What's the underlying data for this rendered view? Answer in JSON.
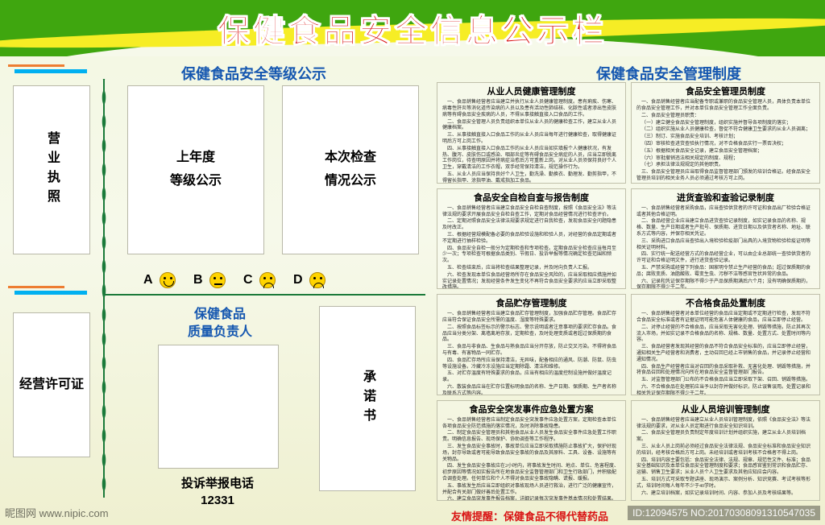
{
  "title": "保健食品安全信息公示栏",
  "section_left": "保健食品安全等级公示",
  "section_right": "保健食品安全管理制度",
  "slots": {
    "license": "营业执照",
    "permit": "经营许可证",
    "last_year_l1": "上年度",
    "last_year_l2": "等级公示",
    "this_check_l1": "本次检查",
    "this_check_l2": "情况公示",
    "pledge": "承诺书"
  },
  "ratings": {
    "a": "A",
    "b": "B",
    "c": "C",
    "d": "D"
  },
  "responsible": {
    "l1": "保健食品",
    "l2": "质量负责人"
  },
  "hotline": {
    "l1": "投诉举报电话",
    "l2": "12331"
  },
  "policies": [
    {
      "title": "从业人员健康管理制度",
      "body": [
        "一、食品销售经营者应当建立并执行从业人员健康管理制度。患有痢疾、伤寒、病毒性肝炎等消化道传染病的人员以及患有活动性肺结核、化脓性或者渗出性皮肤病等有碍食品安全疾病的人员，不得从事接触直接入口食品的工作。",
        "二、食品安全管理人员负责组织本单位从业人员的健康检查工作，建立从业人员健康档案。",
        "三、从事接触直接入口食品工作的从业人员应当每年进行健康检查，取得健康证明后方可上岗工作。",
        "四、从事接触直接入口食品工作的从业人员应当如实填报个人健康状况，有发热、腹泻、皮肤伤口或感染、咽部炎症等有碍食品安全病症的人员，应当立即脱离工作岗位，待查明原因并将病症治愈后方可重新上岗。对从业人员须保持良好个人卫生，穿戴清洁的工作衣帽，双手经常保持清洁，规范操作行为。",
        "五、从业人员应当保持良好个人卫生，勤洗澡、勤换衣、勤理发、勤剪指甲，不得留长指甲、涂指甲油、戴戒指加工食品。",
        "六、从业人员数量超过规模、健康检查项目与监督频次以及对发现疑似健康问题的随访措施应当依照国家规定执行。不得聘用未取得健康合格证明的人员。"
      ]
    },
    {
      "title": "食品安全管理员制度",
      "body": [
        "一、食品销售经营者应当配备专职或兼职的食品安全管理人员，具体负责本单位的食品安全管理工作，并对本单位食品安全管理工作全面负责。",
        "二、食品安全管理员职责：",
        "（一）建立健全食品安全管理制度，组织实施并督导各项制度的落实；",
        "（二）组织实施从业人员健康检查，督促不符合健康卫生要求的从业人员调离；",
        "（三）制订、实施食品安全培训、考核计划；",
        "（四）审核检查进货查验执行情况，对不合格食品实行一票否决权；",
        "（五）根据相关食品安全记录，建立食品安全管理档案；",
        "（六）审批撤销违法相关规定的制度、规程；",
        "（七）承担法律法规规定的其他职责。",
        "三、食品安全管理员应当取得食品监督管理部门颁发的培训合格证。经食品安全管理员培训的相关业务人员必须通过考核方可上岗。"
      ]
    },
    {
      "title": "食品安全自检自查与报告制度",
      "body": [
        "一、食品销售经营者应当建立食品安全自检自查制度，按照《食品安全法》等法律法规的要求开展食品安全自检自查工作，定期对食品经营情况进行检查评价。",
        "二、定期对照食品安全法律法规要求规定进行自我检查，发现食品安全问题隐患及时改正。",
        "三、根据经营规模配备必要的食品检验设施和检验人员，对经营的食品定期或者不定期进行抽样检验。",
        "四、食品安全自检一般分为定期检查和专项检查。定期食品安全检查应当每月至少一次；专项检查可根据食品类别、节假日、投诉举报等情况确定检查范围和频次。",
        "五、检查结束后，应当将检查结果整理记录，并及时向负责人汇报。",
        "六、检查发现本单位食品经营场所存在食品安全风险的，应当采取相应措施并如实记录处置情况；发现经营条件发生变化不再符合食品安全要求的应当立即采取整改措施。",
        "七、发现有发生食品安全事故潜在风险的，应当立即停止经营并向食品安全监督管理部门报告。建立食品安全事故报告制度和应急预案。"
      ]
    },
    {
      "title": "进货查验和查验记录制度",
      "body": [
        "一、食品销售经营者采购食品，应当查验供货者的许可证和食品出厂检验合格证或者其他合格证明。",
        "二、食品经营企业应当建立食品进货查验记录制度，如实记录食品的名称、规格、数量、生产日期或者生产批号、保质期、进货日期以及供货者名称、地址、联系方式等内容，并保存相关凭证。",
        "三、采购进口食品应当查验出入境检验检疫部门出具的入境货物检验检疫证明等相关证明材料。",
        "四、实行统一配送经营方式的食品经营企业，可以由企业总部统一查验供货者的许可证和合格证明文件，进行进货查验记录。",
        "五、严禁采购或经营下列食品：国家明令禁止生产经营的食品；超过保质期的食品；腐败变质、油脂酸败、霉变生虫、污秽不洁等感官性状异常的食品。",
        "六、记录和凭证保存期限不得少于产品保质期满后六个月；没有明确保质期的，保存期限不得少于二年。"
      ]
    },
    {
      "title": "食品贮存管理制度",
      "body": [
        "一、食品销售经营者应当建立食品贮存管理制度，加强食品贮存管理。食品贮存应当符合保证食品安全所需的温度、湿度等特殊要求。",
        "二、按照食品标签标示的警示标志、警示说明或者注意事项的要求贮存食品。食品应当分类分架、离墙离地存放，定期检查，及时处理变质或者超过保质期的食品。",
        "三、食品与非食品、生食品与熟食品应当分开存放，防止交叉污染。不得将食品与有毒、有害物品一同贮存。",
        "四、食品贮存场所应当保持清洁，无异味，配备相应的通风、防潮、防鼠、防虫等设施设备。冷藏冷冻设施应当定期除霜、清洁和维修。",
        "五、对贮存温度有特殊要求的食品，应当有相应的温度控制设施并做好温度记录。",
        "六、散装食品应当在贮存位置标明食品的名称、生产日期、保质期、生产者名称及联系方式等内容。",
        "七、建立食品进货验收记录本，记录库存情况并定期盘点。"
      ]
    },
    {
      "title": "不合格食品处置制度",
      "body": [
        "一、食品销售经营者对本单位经营的食品应当定期或不定期进行检查，发现不符合食品安全标准或者有证据证明可能危害人体健康的食品，应当立即停止经营。",
        "二、对停止经营的不合格食品，应当采取无害化处理、销毁等措施，防止其再次流入市场，并如实记录不合格食品的名称、规格、数量、处置方式、处置时间等内容。",
        "三、食品经营者发现其经营的食品不符合食品安全标准的，应当立即停止经营，通知相关生产经营者和消费者，主动召回已经上市销售的食品，并记录停止经营和通知情况。",
        "四、食品生产经营者应当对召回的食品采取补救、无害化处理、销毁等措施，并将食品召回和处理情况向所在地食品安全监督管理部门报告。",
        "五、对监督管理部门公布的不合格食品应当立即采取下架、召回、销毁等措施。",
        "六、不合格食品在处理前应当予以封存并做好标识，防止误售误用。处置记录和相关凭证保存期限不得少于二年。"
      ]
    },
    {
      "title": "食品安全突发事件应急处置方案",
      "body": [
        "一、食品销售经营者应当制定食品安全突发事件应急处置方案，定期检查本单位各项食品安全防范措施的落实情况，及时消除事故隐患。",
        "二、制定食品安全管理员和其他食品从业人员发生食品安全事件应急处置工作职责。明确信息报告、现场保护、协助调查等工作程序。",
        "三、发生食品安全事故时，事故单位应当立即采取措施防止事故扩大，保护好现场，封存导致或者可能导致食品安全事故的食品及其原料、工具、设备、设施等有关物品。",
        "四、发生食品安全事故应在2小时内，将事故发生时间、地点、单位、危害程度、初步原因等情况如实报告所在地食品安全监督管理部门和卫生行政部门，并积极配合调查处理。任何单位和个人不得对食品安全事故隐瞒、谎报、缓报。",
        "五、事故发生后应当立即组织对事故现场人员进行救治，进行广泛的健康宣传，并配合有关部门做好善后处置工作。",
        "六、建立食品突发事件报告档案，详细记录每次突发事件基本情况和处置结果。"
      ]
    },
    {
      "title": "从业人员培训管理制度",
      "body": [
        "一、食品销售经营者应当建立从业人员培训管理制度，依照《食品安全法》等法律法规的要求，对从业人员定期进行食品安全知识培训。",
        "二、食品安全管理员负责制定年度培训计划并组织实施，建立从业人员培训档案。",
        "三、从业人员上岗前必须经过食品安全法律法规、食品安全标准和食品安全知识的培训，经考核合格后方可上岗。未经培训或者培训考核不合格者不得上岗。",
        "四、培训内容主要包括：食品安全法律、法规、规章、规范性文件、标准；食品安全基础知识及本单位食品安全管理制度和要求；食品感官鉴别常识和食品贮存、运输、销售卫生要求；从业人员个人卫生要求及其他应知应会内容。",
        "五、培训方式可采取专题讲座、现场演示、案例分析、知识竞赛、考试考核等形式，培训时间每人每年不少于40学时。",
        "六、建立培训档案，如实记录培训时间、内容、参加人员及考核结果等。"
      ]
    }
  ],
  "footer_note": "友情提醒：保健食品不得代替药品",
  "watermark": {
    "left": "昵图网 www.nipic.com",
    "right": "ID:12094575 NO:20170308091310547035"
  }
}
